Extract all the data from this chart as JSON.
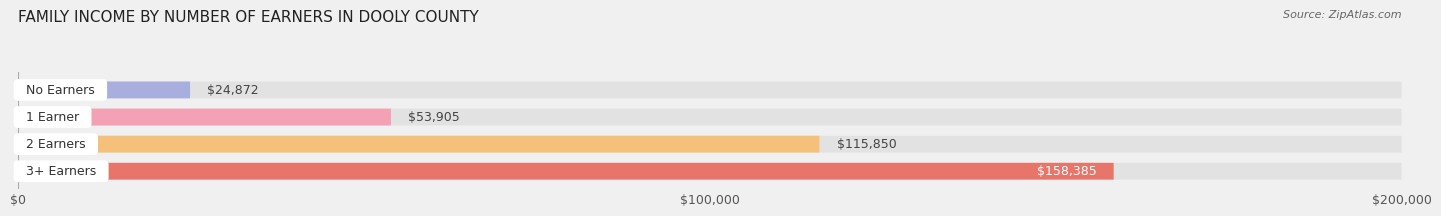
{
  "title": "FAMILY INCOME BY NUMBER OF EARNERS IN DOOLY COUNTY",
  "source": "Source: ZipAtlas.com",
  "categories": [
    "No Earners",
    "1 Earner",
    "2 Earners",
    "3+ Earners"
  ],
  "values": [
    24872,
    53905,
    115850,
    158385
  ],
  "bar_colors": [
    "#a8aedd",
    "#f4a0b5",
    "#f5c07a",
    "#e8756a"
  ],
  "value_label_colors": [
    "#444444",
    "#444444",
    "#444444",
    "#ffffff"
  ],
  "xlim": [
    0,
    200000
  ],
  "xticks": [
    0,
    100000,
    200000
  ],
  "xtick_labels": [
    "$0",
    "$100,000",
    "$200,000"
  ],
  "background_color": "#f0f0f0",
  "bar_background_color": "#e2e2e2",
  "title_fontsize": 11,
  "tick_fontsize": 9,
  "label_fontsize": 9,
  "value_fontsize": 9
}
